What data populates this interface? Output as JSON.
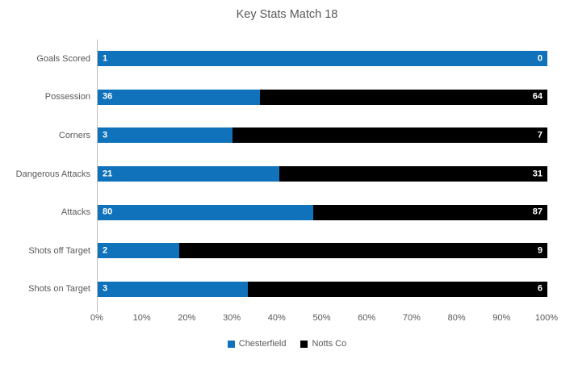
{
  "title": "Key Stats Match 18",
  "colors": {
    "chesterfield_blue": "#1072BA",
    "notts_black": "#000000",
    "text_grey": "#595959",
    "axis_line_grey": "#BFBFBF",
    "data_label_white": "#FFFFFF"
  },
  "chart_data": {
    "type": "bar",
    "subtype": "horizontal-100pct-stacked",
    "title": "Key Stats Match 18",
    "categories": [
      "Goals Scored",
      "Possession",
      "Corners",
      "Dangerous Attacks",
      "Attacks",
      "Shots off Target",
      "Shots on Target"
    ],
    "series": [
      {
        "name": "Chesterfield",
        "color": "#1072BA",
        "values": [
          1,
          36,
          3,
          21,
          80,
          2,
          3
        ]
      },
      {
        "name": "Notts Co",
        "color": "#000000",
        "values": [
          0,
          64,
          7,
          31,
          87,
          9,
          6
        ]
      }
    ],
    "x_axis": {
      "min": 0,
      "max": 100,
      "tick_labels": [
        "0%",
        "10%",
        "20%",
        "30%",
        "40%",
        "50%",
        "60%",
        "70%",
        "80%",
        "90%",
        "100%"
      ]
    },
    "grid": false,
    "data_labels": true,
    "legend": {
      "position": "bottom",
      "entries": [
        "Chesterfield",
        "Notts Co"
      ]
    }
  }
}
